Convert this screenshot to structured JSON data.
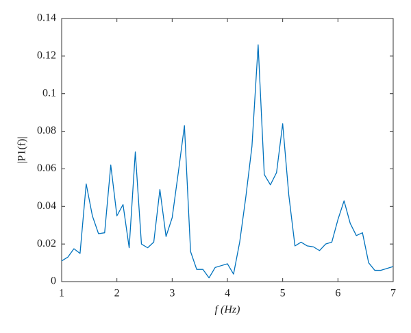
{
  "chart_data": {
    "type": "line",
    "xlabel": "f (Hz)",
    "ylabel": "|P1(f)|",
    "x": [
      1,
      1.111,
      1.222,
      1.333,
      1.444,
      1.556,
      1.667,
      1.778,
      1.889,
      2,
      2.111,
      2.222,
      2.333,
      2.444,
      2.556,
      2.667,
      2.778,
      2.889,
      3,
      3.111,
      3.222,
      3.333,
      3.444,
      3.556,
      3.667,
      3.778,
      3.889,
      4,
      4.111,
      4.222,
      4.333,
      4.444,
      4.556,
      4.667,
      4.778,
      4.889,
      5,
      5.111,
      5.222,
      5.333,
      5.444,
      5.556,
      5.667,
      5.778,
      5.889,
      6,
      6.111,
      6.222,
      6.333,
      6.444,
      6.556,
      6.667,
      6.778,
      6.889,
      7
    ],
    "series": [
      {
        "color": "#0072bd",
        "values": [
          0.011,
          0.013,
          0.0175,
          0.015,
          0.052,
          0.035,
          0.0255,
          0.026,
          0.062,
          0.035,
          0.041,
          0.018,
          0.069,
          0.02,
          0.018,
          0.021,
          0.049,
          0.024,
          0.034,
          0.058,
          0.083,
          0.016,
          0.0065,
          0.0065,
          0.002,
          0.0075,
          0.0085,
          0.0095,
          0.004,
          0.021,
          0.045,
          0.072,
          0.126,
          0.057,
          0.0515,
          0.058,
          0.084,
          0.046,
          0.019,
          0.021,
          0.019,
          0.0185,
          0.0165,
          0.02,
          0.021,
          0.033,
          0.043,
          0.031,
          0.0245,
          0.026,
          0.01,
          0.006,
          0.006,
          0.007,
          0.008
        ]
      }
    ],
    "xlim": [
      1,
      7
    ],
    "xticks": [
      1,
      2,
      3,
      4,
      5,
      6,
      7
    ],
    "ylim": [
      0,
      0.14
    ],
    "yticks": [
      0,
      0.02,
      0.04,
      0.06,
      0.08,
      0.1,
      0.12,
      0.14
    ],
    "grid": false
  }
}
